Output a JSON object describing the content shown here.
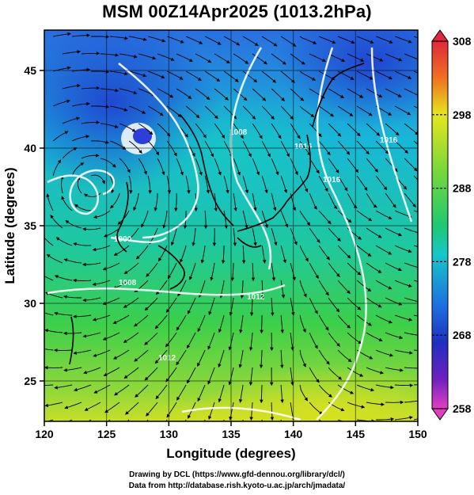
{
  "title": "MSM 00Z14Apr2025 (1013.2hPa)",
  "map": {
    "xlabel": "Longitude (degrees)",
    "ylabel": "Latitude  (degrees)",
    "xlim": [
      120,
      150
    ],
    "ylim": [
      22.4,
      47.6
    ],
    "xticks": [
      "120",
      "125",
      "130",
      "135",
      "140",
      "145",
      "150"
    ],
    "yticks": [
      "25",
      "30",
      "35",
      "40",
      "45"
    ],
    "grid_lon": [
      125,
      130,
      135,
      140,
      145
    ],
    "grid_lat": [
      25,
      30,
      35,
      40,
      45
    ],
    "contour_labels": [
      "1000",
      "1008",
      "1008",
      "1016",
      "1016",
      "1016",
      "1012",
      "1012"
    ],
    "colors": {
      "cold": "#1e4fd8",
      "mid": "#14c8c8",
      "warm": "#3cd23c",
      "hot": "#e6e61e"
    }
  },
  "colorbar": {
    "min": 258,
    "max": 308,
    "ticks": [
      "308",
      "298",
      "288",
      "278",
      "268",
      "258"
    ]
  },
  "credits": {
    "line1": "Drawing by DCL (https://www.gfd-dennou.org/library/dcl/)",
    "line2": "Data from http://database.rish.kyoto-u.ac.jp/arch/jmadata/"
  }
}
